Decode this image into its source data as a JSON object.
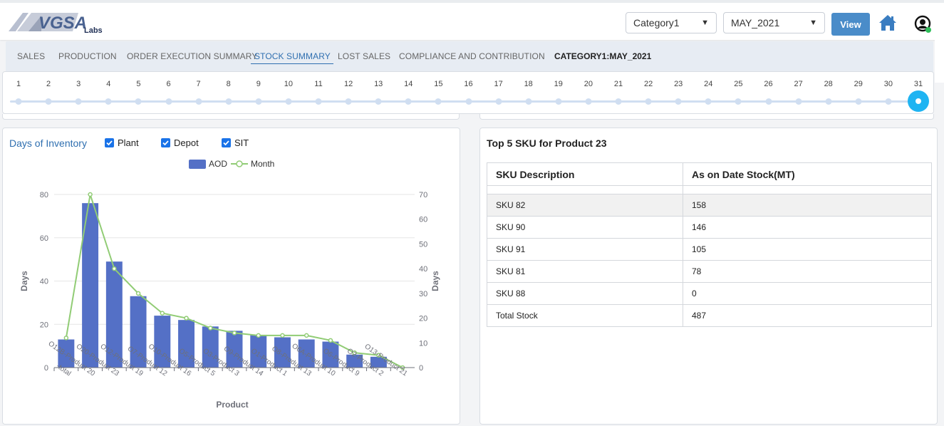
{
  "header": {
    "logo_text": "VGSA",
    "logo_sub": "Labs",
    "category_select": "Category1",
    "month_select": "MAY_2021",
    "view_label": "View",
    "home_icon": "home-icon",
    "user_icon": "user-icon"
  },
  "tabs": {
    "items": [
      {
        "label": "SALES"
      },
      {
        "label": "PRODUCTION"
      },
      {
        "label": "ORDER EXECUTION SUMMARY"
      },
      {
        "label": "STOCK SUMMARY"
      },
      {
        "label": "LOST SALES"
      },
      {
        "label": "COMPLIANCE AND CONTRIBUTION"
      }
    ],
    "active": "STOCK SUMMARY",
    "context_label": "CATEGORY1:MAY_2021"
  },
  "slider": {
    "days": [
      "1",
      "2",
      "3",
      "4",
      "5",
      "6",
      "7",
      "8",
      "9",
      "10",
      "11",
      "12",
      "13",
      "14",
      "15",
      "16",
      "17",
      "18",
      "19",
      "20",
      "21",
      "22",
      "23",
      "24",
      "25",
      "26",
      "27",
      "28",
      "29",
      "30",
      "31"
    ],
    "selected_day": "31"
  },
  "chart_panel": {
    "title": "Days of Inventory",
    "filters": [
      {
        "label": "Plant",
        "checked": true
      },
      {
        "label": "Depot",
        "checked": true
      },
      {
        "label": "SIT",
        "checked": true
      }
    ]
  },
  "chart_data": {
    "type": "bar",
    "categories": [
      "-total",
      "O12B-Product 20",
      "O20-Product 23",
      "O12-Product 19",
      "O7-Product 12",
      "O10-Product 16",
      "O5-Product 5",
      "O3-Product 3",
      "O9-Product 14",
      "O1-Product 1",
      "O8-Product 13",
      "O6A-Product 10",
      "O6-Product 9",
      "O2-Product 2",
      "O13-Product 21"
    ],
    "series": [
      {
        "name": "AOD",
        "type": "bar",
        "axis": "left",
        "color": "#5470c6",
        "values": [
          13,
          76,
          49,
          33,
          24,
          22,
          19,
          17,
          15,
          14,
          13,
          12,
          6,
          5,
          0
        ]
      },
      {
        "name": "Month",
        "type": "line",
        "axis": "right",
        "color": "#91cc75",
        "values": [
          12,
          70,
          40,
          30,
          22,
          20,
          16,
          14,
          13,
          13,
          13,
          11,
          6,
          5,
          0
        ]
      }
    ],
    "xlabel": "Product",
    "ylabel": "Days",
    "y2label": "Days",
    "ylim": [
      0,
      80
    ],
    "yticks": [
      0,
      20,
      40,
      60,
      80
    ],
    "y2lim": [
      0,
      70
    ],
    "y2ticks": [
      0,
      10,
      20,
      30,
      40,
      50,
      60,
      70
    ],
    "grid": true,
    "legend_position": "top-center"
  },
  "table_panel": {
    "title": "Top 5 SKU for Product 23",
    "columns": [
      "SKU Description",
      "As on Date Stock(MT)"
    ],
    "rows": [
      [
        "SKU 82",
        "158"
      ],
      [
        "SKU 90",
        "146"
      ],
      [
        "SKU 91",
        "105"
      ],
      [
        "SKU 81",
        "78"
      ],
      [
        "SKU 88",
        "0"
      ],
      [
        "Total Stock",
        "487"
      ]
    ]
  }
}
